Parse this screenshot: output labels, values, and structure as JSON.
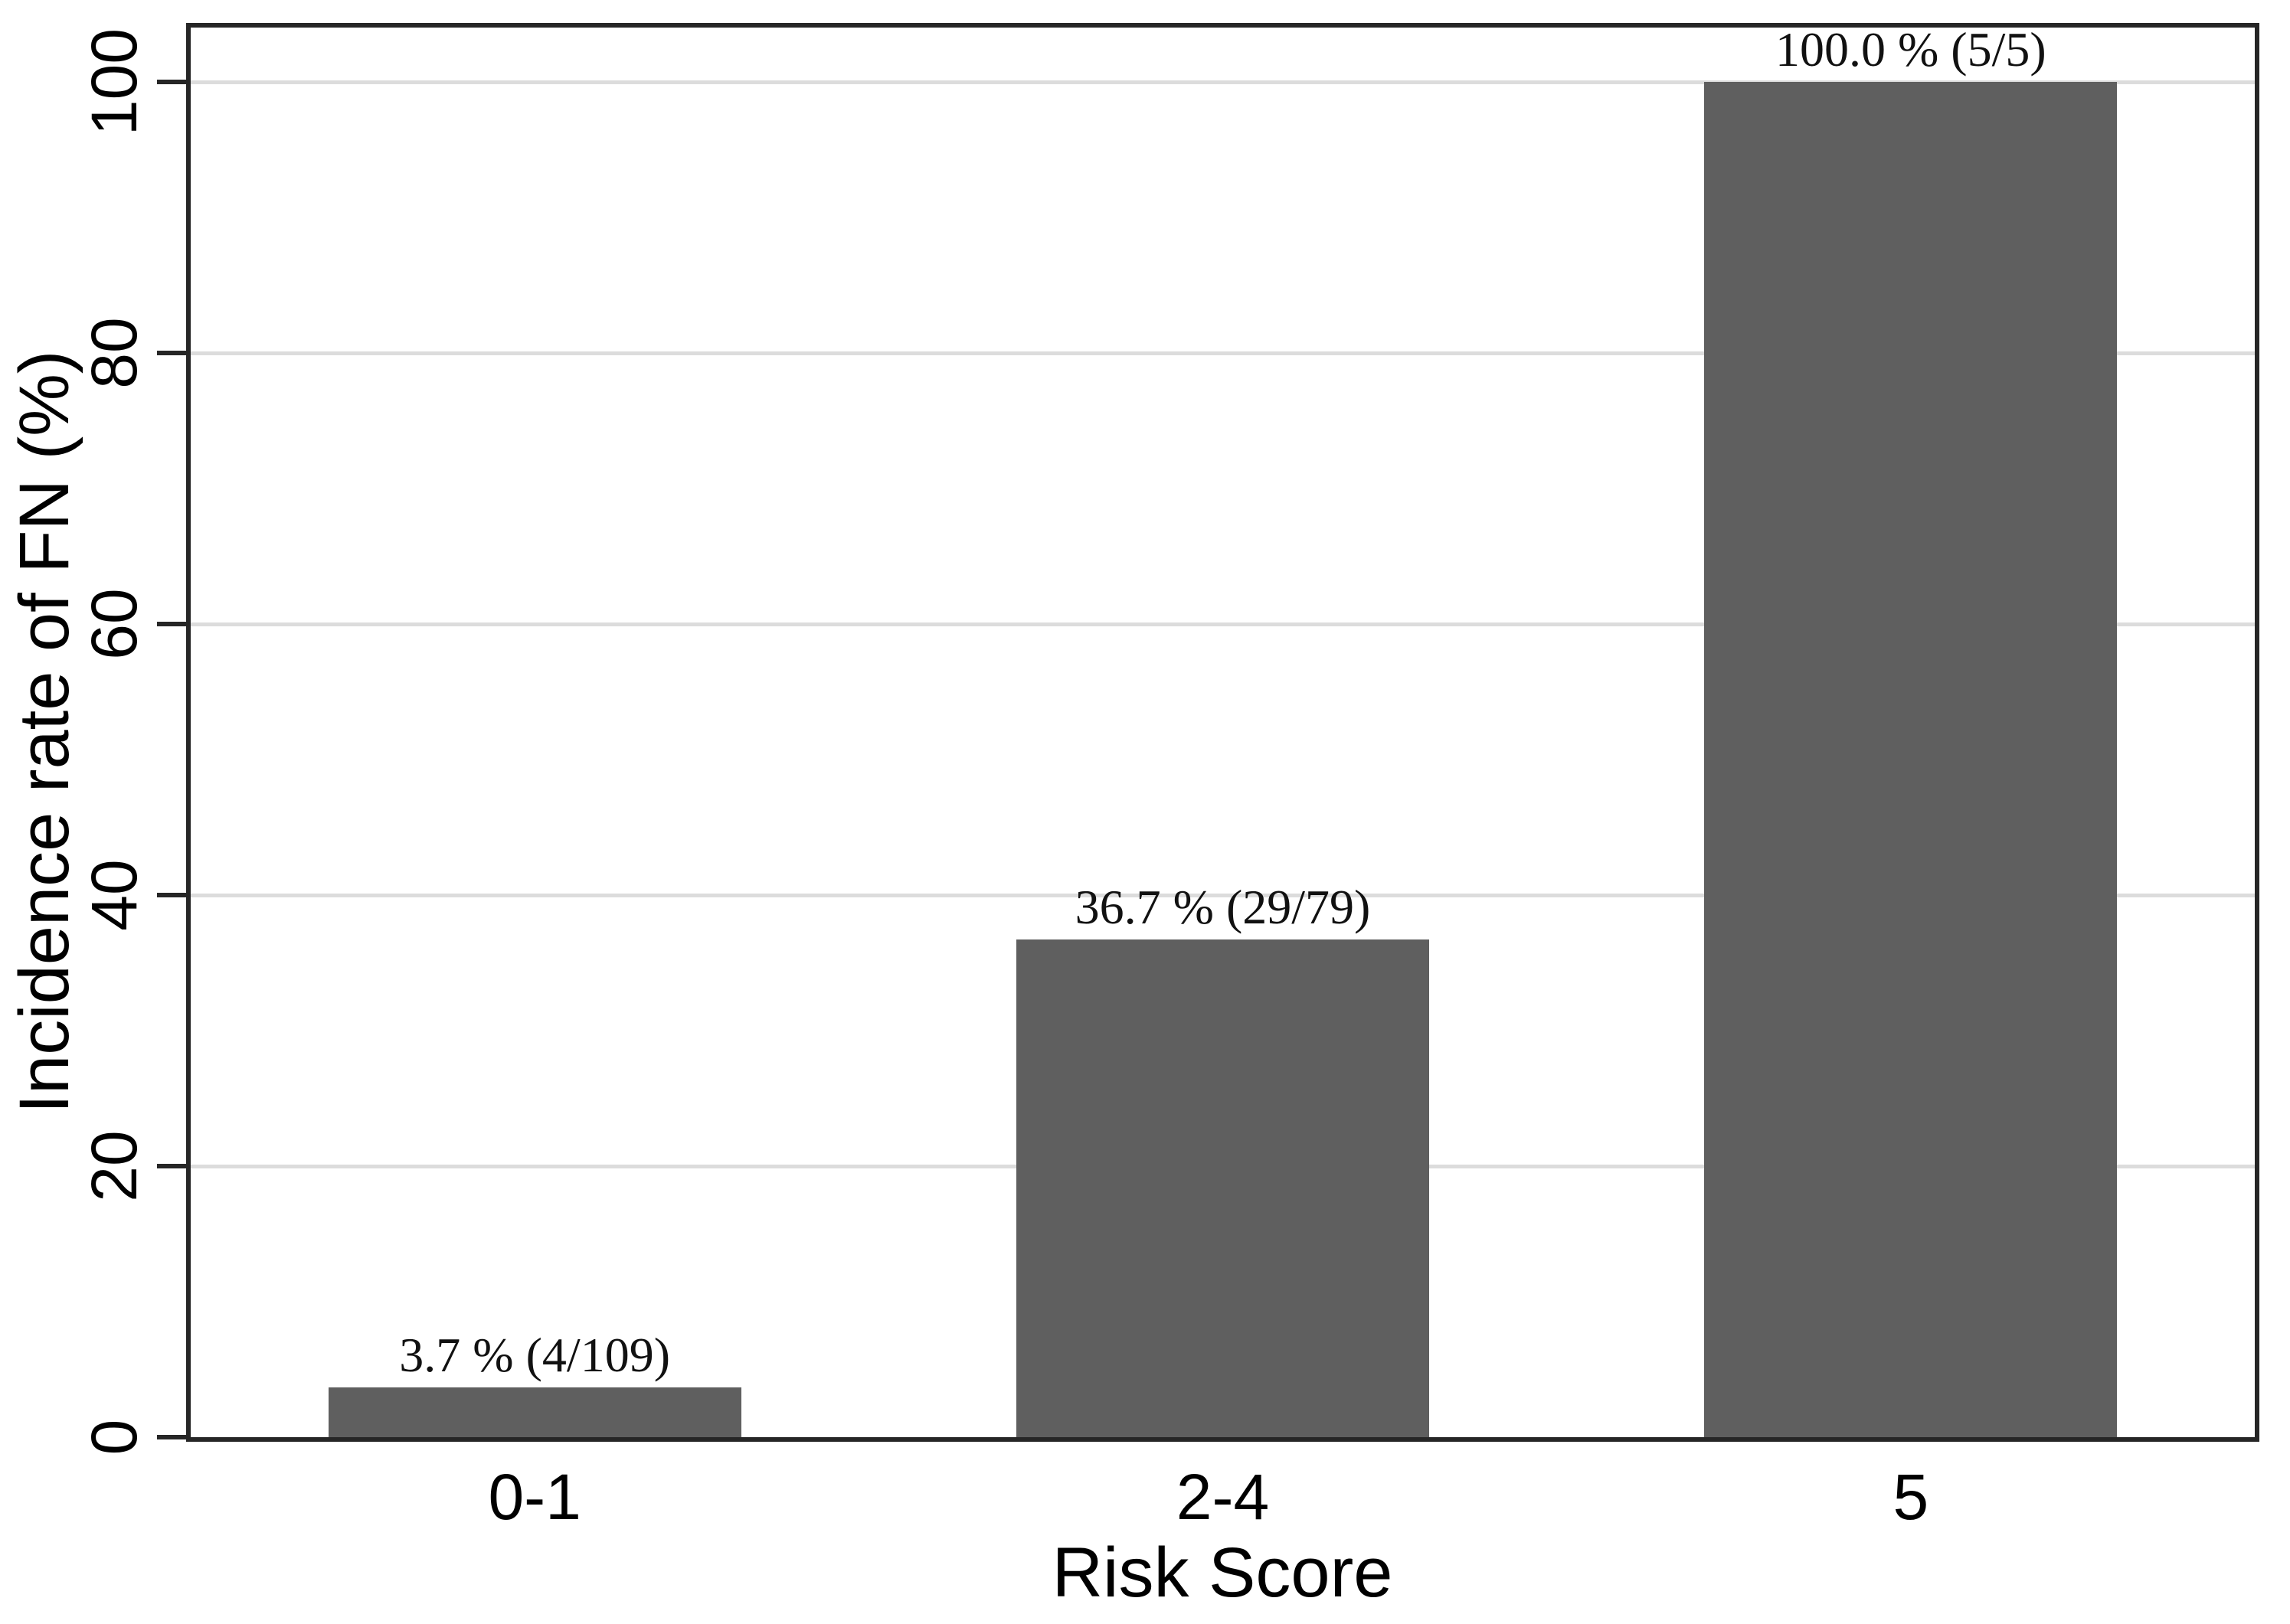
{
  "figure": {
    "background": "#ffffff"
  },
  "chart_data": {
    "type": "bar",
    "title": "",
    "categories": [
      "0-1",
      "2-4",
      "5"
    ],
    "values": [
      3.7,
      36.7,
      100.0
    ],
    "bar_labels": [
      "3.7 % (4/109)",
      "36.7 % (29/79)",
      "100.0 % (5/5)"
    ],
    "fractions": [
      "4/109",
      "29/79",
      "5/5"
    ],
    "xlabel": "Risk Score",
    "ylabel": "Incidence rate of FN (%)",
    "y_ticks": [
      0,
      20,
      40,
      60,
      80,
      100
    ],
    "ylim": [
      0,
      104
    ],
    "grid": "horizontal-only",
    "legend": "none",
    "bar_color": "#5f5f5f",
    "grid_color": "#dcdcdc",
    "axis_color": "#262626",
    "label_color": "#111111"
  }
}
